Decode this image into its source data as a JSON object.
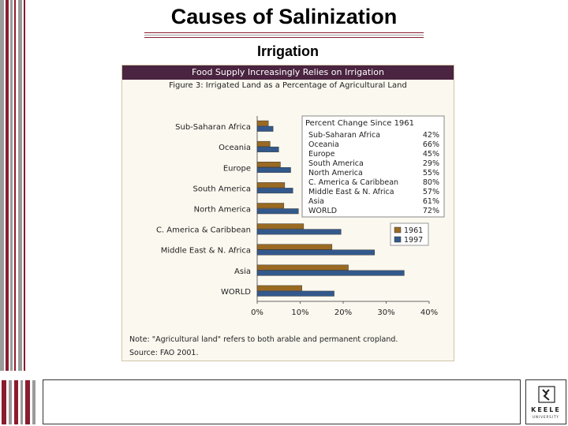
{
  "slide": {
    "title": "Causes of Salinization",
    "subtitle": "Irrigation"
  },
  "figure": {
    "header": "Food Supply Increasingly Relies on Irrigation",
    "caption": "Figure 3: Irrigated Land as a Percentage of Agricultural Land",
    "note": "Note: \"Agricultural land\" refers to both arable and permanent cropland.",
    "source": "Source: FAO 2001."
  },
  "chart_data": {
    "type": "bar",
    "orientation": "horizontal",
    "title": "Irrigated Land as a Percentage of Agricultural Land",
    "categories": [
      "Sub-Saharan Africa",
      "Oceania",
      "Europe",
      "South America",
      "North America",
      "C. America & Caribbean",
      "Middle East & N. Africa",
      "Asia",
      "WORLD"
    ],
    "series": [
      {
        "name": "1961",
        "color": "#9a6a22",
        "values": [
          2.6,
          3.0,
          5.4,
          6.4,
          6.2,
          10.8,
          17.4,
          21.2,
          10.4
        ]
      },
      {
        "name": "1997",
        "color": "#33598c",
        "values": [
          3.7,
          5.0,
          7.8,
          8.3,
          9.6,
          19.5,
          27.3,
          34.2,
          17.9
        ]
      }
    ],
    "xlim": [
      0,
      40
    ],
    "xticks": [
      0,
      10,
      20,
      30,
      40
    ],
    "tick_labels": [
      "0%",
      "10%",
      "20%",
      "30%",
      "40%"
    ],
    "legend_placement": "right",
    "inset_table": {
      "title": "Percent Change Since 1961",
      "rows": [
        {
          "region": "Sub-Saharan Africa",
          "change": "42%"
        },
        {
          "region": "Oceania",
          "change": "66%"
        },
        {
          "region": "Europe",
          "change": "45%"
        },
        {
          "region": "South America",
          "change": "29%"
        },
        {
          "region": "North America",
          "change": "55%"
        },
        {
          "region": "C. America & Caribbean",
          "change": "80%"
        },
        {
          "region": "Middle East & N. Africa",
          "change": "57%"
        },
        {
          "region": "Asia",
          "change": "61%"
        },
        {
          "region": "WORLD",
          "change": "72%"
        }
      ]
    }
  },
  "footer": {
    "logo_word": "KEELE",
    "logo_sub": "UNIVERSITY",
    "colors": {
      "maroon": "#8a1c2e",
      "grey": "#9a9a9a"
    }
  }
}
